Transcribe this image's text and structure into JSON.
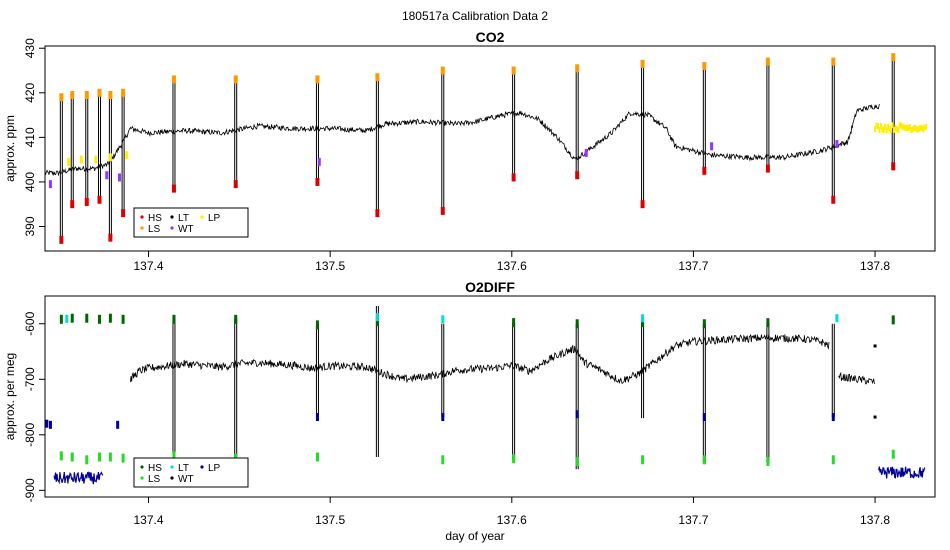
{
  "figure": {
    "title": "180517a   Calibration Data 2",
    "xlabel": "day of year"
  },
  "chart_data": [
    {
      "type": "scatter",
      "title": "CO2",
      "ylabel": "approx. ppm",
      "xlim": [
        137.343,
        137.833
      ],
      "ylim": [
        384.5,
        430.5
      ],
      "xticks": [
        137.4,
        137.5,
        137.6,
        137.7,
        137.8
      ],
      "yticks": [
        390,
        400,
        410,
        420,
        430
      ],
      "legend": {
        "placement": "bottom-left",
        "entries": [
          {
            "name": "HS",
            "color": "#dd0000"
          },
          {
            "name": "LS",
            "color": "#ff9900"
          },
          {
            "name": "LT",
            "color": "#000000"
          },
          {
            "name": "WT",
            "color": "#9933ff"
          },
          {
            "name": "LP",
            "color": "#ffee00"
          }
        ]
      },
      "baseline": [
        [
          137.343,
          402
        ],
        [
          137.35,
          402
        ],
        [
          137.36,
          403
        ],
        [
          137.37,
          403
        ],
        [
          137.378,
          404
        ],
        [
          137.386,
          409
        ],
        [
          137.39,
          412
        ],
        [
          137.4,
          411
        ],
        [
          137.42,
          411.5
        ],
        [
          137.44,
          411
        ],
        [
          137.46,
          412.5
        ],
        [
          137.48,
          412
        ],
        [
          137.5,
          412
        ],
        [
          137.52,
          411.5
        ],
        [
          137.53,
          413
        ],
        [
          137.55,
          413.5
        ],
        [
          137.57,
          413
        ],
        [
          137.58,
          413.5
        ],
        [
          137.595,
          415
        ],
        [
          137.605,
          415.5
        ],
        [
          137.615,
          414
        ],
        [
          137.625,
          410
        ],
        [
          137.635,
          405
        ],
        [
          137.645,
          408
        ],
        [
          137.655,
          411
        ],
        [
          137.665,
          415.5
        ],
        [
          137.675,
          415
        ],
        [
          137.685,
          412
        ],
        [
          137.69,
          408
        ],
        [
          137.7,
          407
        ],
        [
          137.71,
          406
        ],
        [
          137.73,
          405.5
        ],
        [
          137.75,
          405.5
        ],
        [
          137.77,
          407
        ],
        [
          137.785,
          409
        ],
        [
          137.79,
          416
        ],
        [
          137.8,
          417
        ],
        [
          137.803,
          417
        ]
      ],
      "spikes": [
        {
          "x": 137.352,
          "high": 419,
          "low": 387
        },
        {
          "x": 137.358,
          "high": 419.5,
          "low": 395
        },
        {
          "x": 137.366,
          "high": 419.5,
          "low": 395.5
        },
        {
          "x": 137.373,
          "high": 420,
          "low": 396
        },
        {
          "x": 137.379,
          "high": 419.5,
          "low": 387.5
        },
        {
          "x": 137.386,
          "high": 420,
          "low": 393
        },
        {
          "x": 137.414,
          "high": 423,
          "low": 398.5
        },
        {
          "x": 137.448,
          "high": 423,
          "low": 399.5
        },
        {
          "x": 137.493,
          "high": 423,
          "low": 400
        },
        {
          "x": 137.526,
          "high": 423.5,
          "low": 393
        },
        {
          "x": 137.562,
          "high": 425,
          "low": 393.5
        },
        {
          "x": 137.601,
          "high": 425,
          "low": 401
        },
        {
          "x": 137.636,
          "high": 425.5,
          "low": 401.5
        },
        {
          "x": 137.672,
          "high": 426.5,
          "low": 395
        },
        {
          "x": 137.706,
          "high": 426,
          "low": 402.5
        },
        {
          "x": 137.741,
          "high": 427,
          "low": 403
        },
        {
          "x": 137.777,
          "high": 427,
          "low": 396
        },
        {
          "x": 137.81,
          "high": 428,
          "low": 403.5
        }
      ],
      "wt_points": [
        [
          137.346,
          399.5
        ],
        [
          137.377,
          401.5
        ],
        [
          137.384,
          401
        ],
        [
          137.494,
          404.5
        ],
        [
          137.641,
          406.5
        ],
        [
          137.71,
          408
        ],
        [
          137.779,
          408.5
        ]
      ],
      "lp_points": [
        [
          137.356,
          404.5
        ],
        [
          137.363,
          405
        ],
        [
          137.371,
          405
        ],
        [
          137.379,
          405.5
        ],
        [
          137.388,
          406
        ]
      ],
      "lp_range": [
        137.8,
        137.828,
        412.2
      ]
    },
    {
      "type": "scatter",
      "title": "O2DIFF",
      "ylabel": "approx. per meg",
      "xlim": [
        137.343,
        137.833
      ],
      "ylim": [
        -912,
        -550
      ],
      "xticks": [
        137.4,
        137.5,
        137.6,
        137.7,
        137.8
      ],
      "yticks": [
        -900,
        -800,
        -700,
        -600
      ],
      "legend": {
        "placement": "bottom-left",
        "entries": [
          {
            "name": "HS",
            "color": "#006600"
          },
          {
            "name": "LS",
            "color": "#22dd22"
          },
          {
            "name": "LT",
            "color": "#00dddd"
          },
          {
            "name": "WT",
            "color": "#000000"
          },
          {
            "name": "LP",
            "color": "#000099"
          }
        ]
      },
      "baseline": [
        [
          137.39,
          -700
        ],
        [
          137.395,
          -685
        ],
        [
          137.4,
          -680
        ],
        [
          137.42,
          -672
        ],
        [
          137.44,
          -678
        ],
        [
          137.45,
          -672
        ],
        [
          137.46,
          -670
        ],
        [
          137.48,
          -675
        ],
        [
          137.49,
          -680
        ],
        [
          137.5,
          -676
        ],
        [
          137.52,
          -678
        ],
        [
          137.53,
          -690
        ],
        [
          137.54,
          -700
        ],
        [
          137.56,
          -692
        ],
        [
          137.57,
          -683
        ],
        [
          137.59,
          -680
        ],
        [
          137.6,
          -675
        ],
        [
          137.61,
          -685
        ],
        [
          137.62,
          -665
        ],
        [
          137.63,
          -650
        ],
        [
          137.635,
          -645
        ],
        [
          137.64,
          -670
        ],
        [
          137.65,
          -685
        ],
        [
          137.66,
          -703
        ],
        [
          137.67,
          -690
        ],
        [
          137.68,
          -665
        ],
        [
          137.69,
          -640
        ],
        [
          137.7,
          -632
        ],
        [
          137.72,
          -628
        ],
        [
          137.74,
          -625
        ],
        [
          137.76,
          -627
        ],
        [
          137.77,
          -632
        ],
        [
          137.775,
          -640
        ]
      ],
      "baseline_tail": [
        [
          137.78,
          -695
        ],
        [
          137.79,
          -700
        ],
        [
          137.8,
          -705
        ]
      ],
      "spikes": [
        {
          "x": 137.414,
          "high": -590,
          "low": -835
        },
        {
          "x": 137.448,
          "high": -590,
          "low": -842
        },
        {
          "x": 137.493,
          "high": -602,
          "low": -768
        },
        {
          "x": 137.526,
          "high": -568,
          "low": -840
        },
        {
          "x": 137.562,
          "high": -600,
          "low": -768
        },
        {
          "x": 137.601,
          "high": -598,
          "low": -845
        },
        {
          "x": 137.636,
          "high": -600,
          "low": -862
        },
        {
          "x": 137.672,
          "high": -598,
          "low": -770
        },
        {
          "x": 137.706,
          "high": -600,
          "low": -850
        },
        {
          "x": 137.741,
          "high": -598,
          "low": -850
        },
        {
          "x": 137.777,
          "high": -600,
          "low": -768
        }
      ],
      "hs_points": [
        [
          137.352,
          -592
        ],
        [
          137.358,
          -590
        ],
        [
          137.366,
          -590
        ],
        [
          137.373,
          -592
        ],
        [
          137.379,
          -590
        ],
        [
          137.386,
          -592
        ],
        [
          137.414,
          -592
        ],
        [
          137.448,
          -592
        ],
        [
          137.493,
          -602
        ],
        [
          137.526,
          -596
        ],
        [
          137.601,
          -598
        ],
        [
          137.636,
          -600
        ],
        [
          137.672,
          -598
        ],
        [
          137.706,
          -600
        ],
        [
          137.741,
          -598
        ],
        [
          137.81,
          -593
        ]
      ],
      "ls_points": [
        [
          137.352,
          -838
        ],
        [
          137.358,
          -840
        ],
        [
          137.366,
          -845
        ],
        [
          137.373,
          -840
        ],
        [
          137.379,
          -840
        ],
        [
          137.386,
          -842
        ],
        [
          137.414,
          -838
        ],
        [
          137.448,
          -842
        ],
        [
          137.493,
          -840
        ],
        [
          137.562,
          -845
        ],
        [
          137.601,
          -843
        ],
        [
          137.636,
          -848
        ],
        [
          137.672,
          -845
        ],
        [
          137.706,
          -845
        ],
        [
          137.741,
          -848
        ],
        [
          137.777,
          -845
        ],
        [
          137.81,
          -835
        ]
      ],
      "lt_points": [
        [
          137.355,
          -591
        ],
        [
          137.526,
          -588
        ],
        [
          137.562,
          -592
        ],
        [
          137.672,
          -590
        ],
        [
          137.779,
          -590
        ]
      ],
      "lp_points": [
        [
          137.344,
          -780
        ],
        [
          137.346,
          -782
        ],
        [
          137.383,
          -782
        ],
        [
          137.493,
          -768
        ],
        [
          137.562,
          -768
        ],
        [
          137.636,
          -763
        ],
        [
          137.706,
          -768
        ],
        [
          137.777,
          -768
        ]
      ],
      "lp_bottom_left": [
        137.348,
        137.375,
        -878
      ],
      "lp_bottom_right": [
        137.802,
        137.828,
        -868
      ],
      "wt_points": [
        [
          137.8,
          -640
        ],
        [
          137.8,
          -768
        ]
      ]
    }
  ]
}
